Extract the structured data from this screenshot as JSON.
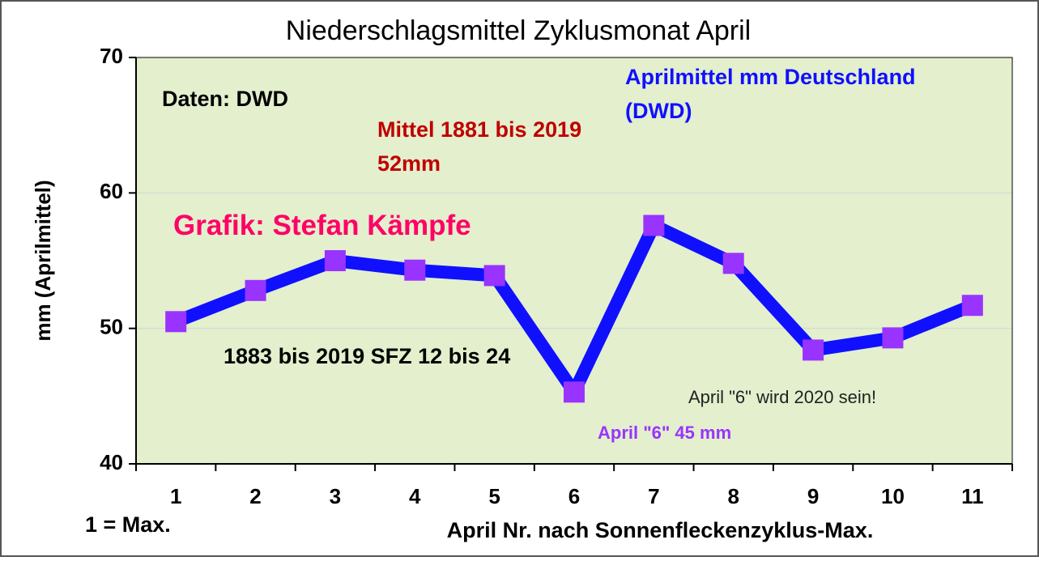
{
  "chart_data": {
    "type": "line",
    "title": "Niederschlagsmittel Zyklusmonat April",
    "y_label": "mm (Aprilmittel)",
    "x_label": "April Nr. nach Sonnenfleckenzyklus-Max.",
    "x_note": "1 = Max.",
    "categories": [
      "1",
      "2",
      "3",
      "4",
      "5",
      "6",
      "7",
      "8",
      "9",
      "10",
      "11"
    ],
    "series": [
      {
        "name": "Aprilmittel mm Deutschland (DWD)",
        "color": "#1010ff",
        "marker_color": "#9933ff",
        "values": [
          50.5,
          52.8,
          55.0,
          54.3,
          53.9,
          45.3,
          57.6,
          54.8,
          48.4,
          49.3,
          51.7
        ]
      }
    ],
    "ylim": [
      40,
      70
    ],
    "yticks": [
      40,
      50,
      60,
      70
    ],
    "grid": true,
    "annotations": [
      {
        "text": "Daten: DWD",
        "color": "#000000"
      },
      {
        "text": "Mittel 1881 bis 2019 52mm",
        "color": "#c00000"
      },
      {
        "text": "Grafik: Stefan Kämpfe",
        "color": "#ff0066"
      },
      {
        "text": "1883 bis 2019 SFZ 12 bis 24",
        "color": "#000000"
      },
      {
        "text": "April \"6\" wird 2020 sein!",
        "color": "#222222"
      },
      {
        "text": "April \"6\" 45 mm",
        "color": "#9933ff"
      }
    ]
  }
}
